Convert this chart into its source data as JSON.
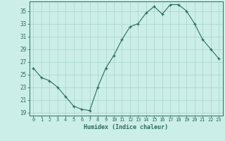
{
  "x": [
    0,
    1,
    2,
    3,
    4,
    5,
    6,
    7,
    8,
    9,
    10,
    11,
    12,
    13,
    14,
    15,
    16,
    17,
    18,
    19,
    20,
    21,
    22,
    23
  ],
  "y": [
    26,
    24.5,
    24,
    23,
    21.5,
    20,
    19.5,
    19.3,
    23,
    26,
    28,
    30.5,
    32.5,
    33,
    34.7,
    35.7,
    34.5,
    36,
    36,
    35,
    33,
    30.5,
    29,
    27.5
  ],
  "xlabel": "Humidex (Indice chaleur)",
  "xlim": [
    -0.5,
    23.5
  ],
  "ylim": [
    18.5,
    36.5
  ],
  "yticks": [
    19,
    21,
    23,
    25,
    27,
    29,
    31,
    33,
    35
  ],
  "xticks": [
    0,
    1,
    2,
    3,
    4,
    5,
    6,
    7,
    8,
    9,
    10,
    11,
    12,
    13,
    14,
    15,
    16,
    17,
    18,
    19,
    20,
    21,
    22,
    23
  ],
  "line_color": "#2d6b5e",
  "marker": "+",
  "bg_color": "#cceee8",
  "grid_color": "#aad8d0",
  "axis_color": "#2d6b5e",
  "text_color": "#2d6b5e"
}
